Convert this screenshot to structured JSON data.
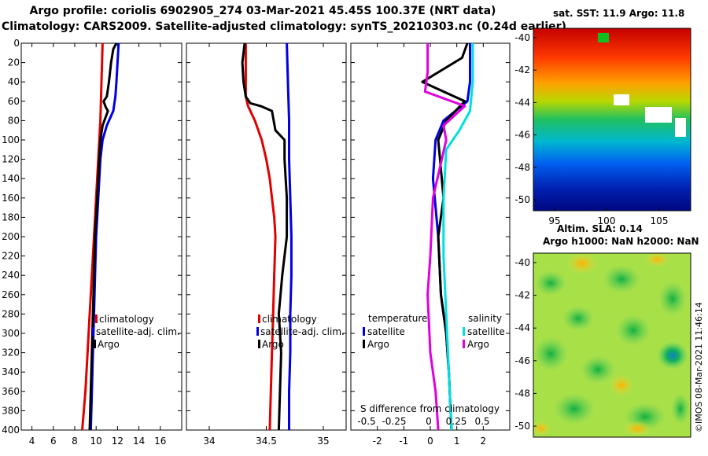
{
  "header": {
    "title_line1": "Argo profile: coriolis 6902905_274 03-Mar-2021 45.45S 100.37E (NRT data)",
    "title_line2": "Climatology: CARS2009. Satellite-adjusted climatology: synTS_20210303.nc (0.24d earlier)"
  },
  "chart_data": [
    {
      "type": "line",
      "panel": "temperature",
      "xlim": [
        3,
        18
      ],
      "xticks": [
        4,
        6,
        8,
        10,
        12,
        14,
        16
      ],
      "ylim": [
        0,
        400
      ],
      "yticks": [
        0,
        20,
        40,
        60,
        80,
        100,
        120,
        140,
        160,
        180,
        200,
        220,
        240,
        260,
        280,
        300,
        320,
        340,
        360,
        380,
        400
      ],
      "legend": [
        "climatology",
        "satellite-adj. clim.",
        "Argo"
      ],
      "series": [
        {
          "name": "climatology",
          "color": "#e00000",
          "points": [
            [
              10.6,
              0
            ],
            [
              10.5,
              40
            ],
            [
              10.4,
              80
            ],
            [
              10.2,
              120
            ],
            [
              10.0,
              160
            ],
            [
              9.8,
              200
            ],
            [
              9.6,
              240
            ],
            [
              9.4,
              280
            ],
            [
              9.2,
              320
            ],
            [
              9.0,
              360
            ],
            [
              8.7,
              400
            ]
          ]
        },
        {
          "name": "satellite-adj. clim.",
          "color": "#0000e0",
          "points": [
            [
              12.1,
              0
            ],
            [
              12.0,
              20
            ],
            [
              11.9,
              40
            ],
            [
              11.8,
              55
            ],
            [
              11.6,
              70
            ],
            [
              11.0,
              85
            ],
            [
              10.6,
              100
            ],
            [
              10.4,
              120
            ],
            [
              10.2,
              160
            ],
            [
              10.0,
              200
            ],
            [
              9.9,
              240
            ],
            [
              9.8,
              280
            ],
            [
              9.7,
              320
            ],
            [
              9.6,
              360
            ],
            [
              9.5,
              400
            ]
          ]
        },
        {
          "name": "Argo",
          "color": "#000000",
          "points": [
            [
              11.9,
              0
            ],
            [
              11.6,
              6
            ],
            [
              11.4,
              20
            ],
            [
              11.2,
              40
            ],
            [
              11.0,
              55
            ],
            [
              10.7,
              60
            ],
            [
              10.9,
              66
            ],
            [
              11.1,
              70
            ],
            [
              10.6,
              85
            ],
            [
              10.4,
              100
            ],
            [
              10.3,
              120
            ],
            [
              10.1,
              160
            ],
            [
              9.9,
              200
            ],
            [
              9.8,
              240
            ],
            [
              9.7,
              280
            ],
            [
              9.6,
              320
            ],
            [
              9.5,
              360
            ],
            [
              9.4,
              400
            ]
          ]
        }
      ]
    },
    {
      "type": "line",
      "panel": "salinity",
      "xlim": [
        33.8,
        35.2
      ],
      "xticks": [
        34,
        34.5,
        35
      ],
      "ylim": [
        0,
        400
      ],
      "legend": [
        "climatology",
        "satellite-adj. clim.",
        "Argo"
      ],
      "series": [
        {
          "name": "climatology",
          "color": "#e00000",
          "points": [
            [
              34.32,
              0
            ],
            [
              34.32,
              55
            ],
            [
              34.34,
              65
            ],
            [
              34.4,
              80
            ],
            [
              34.46,
              100
            ],
            [
              34.5,
              120
            ],
            [
              34.53,
              140
            ],
            [
              34.55,
              160
            ],
            [
              34.57,
              180
            ],
            [
              34.58,
              200
            ],
            [
              34.57,
              240
            ],
            [
              34.56,
              280
            ],
            [
              34.55,
              320
            ],
            [
              34.54,
              360
            ],
            [
              34.53,
              400
            ]
          ]
        },
        {
          "name": "satellite-adj. clim.",
          "color": "#0000e0",
          "points": [
            [
              34.68,
              0
            ],
            [
              34.69,
              40
            ],
            [
              34.7,
              80
            ],
            [
              34.7,
              120
            ],
            [
              34.71,
              160
            ],
            [
              34.72,
              200
            ],
            [
              34.72,
              240
            ],
            [
              34.71,
              280
            ],
            [
              34.71,
              320
            ],
            [
              34.7,
              360
            ],
            [
              34.7,
              400
            ]
          ]
        },
        {
          "name": "Argo",
          "color": "#000000",
          "points": [
            [
              34.31,
              0
            ],
            [
              34.29,
              20
            ],
            [
              34.3,
              40
            ],
            [
              34.32,
              55
            ],
            [
              34.36,
              62
            ],
            [
              34.45,
              65
            ],
            [
              34.55,
              70
            ],
            [
              34.58,
              90
            ],
            [
              34.66,
              100
            ],
            [
              34.66,
              120
            ],
            [
              34.68,
              160
            ],
            [
              34.68,
              200
            ],
            [
              34.64,
              240
            ],
            [
              34.61,
              280
            ],
            [
              34.63,
              320
            ],
            [
              34.62,
              360
            ],
            [
              34.61,
              400
            ]
          ]
        }
      ]
    },
    {
      "type": "line",
      "panel": "difference",
      "xlim": [
        -3,
        3
      ],
      "xticks": [
        -2,
        -1,
        0,
        1,
        2
      ],
      "xlabel_top": "S difference from climatology",
      "s_ticks": [
        "-0.5",
        "-0.25",
        "0",
        "0.25",
        "0.5"
      ],
      "ylim": [
        0,
        400
      ],
      "legend_left": {
        "title": "temperature",
        "items": [
          "satellite",
          "Argo"
        ]
      },
      "legend_right": {
        "title": "salinity",
        "items": [
          "satellite",
          "Argo"
        ]
      },
      "series": [
        {
          "name": "temperature satellite",
          "color": "#0000e0",
          "points": [
            [
              1.5,
              0
            ],
            [
              1.5,
              40
            ],
            [
              1.4,
              60
            ],
            [
              0.5,
              80
            ],
            [
              0.2,
              100
            ],
            [
              0.1,
              140
            ],
            [
              0.3,
              200
            ],
            [
              0.4,
              260
            ],
            [
              0.6,
              300
            ],
            [
              0.7,
              340
            ],
            [
              0.8,
              400
            ]
          ]
        },
        {
          "name": "temperature Argo",
          "color": "#000000",
          "points": [
            [
              1.4,
              0
            ],
            [
              1.2,
              15
            ],
            [
              -0.3,
              40
            ],
            [
              1.3,
              60
            ],
            [
              0.6,
              80
            ],
            [
              0.3,
              100
            ],
            [
              0.5,
              160
            ],
            [
              0.3,
              200
            ],
            [
              0.4,
              260
            ],
            [
              0.6,
              300
            ],
            [
              0.7,
              340
            ],
            [
              0.8,
              400
            ]
          ]
        },
        {
          "name": "salinity satellite",
          "color": "#00e0e0",
          "points": [
            [
              1.6,
              0
            ],
            [
              1.6,
              40
            ],
            [
              1.5,
              70
            ],
            [
              1.1,
              90
            ],
            [
              0.6,
              110
            ],
            [
              0.5,
              160
            ],
            [
              0.5,
              220
            ],
            [
              0.6,
              280
            ],
            [
              0.7,
              340
            ],
            [
              0.8,
              400
            ]
          ]
        },
        {
          "name": "salinity Argo",
          "color": "#e000e0",
          "points": [
            [
              -0.1,
              0
            ],
            [
              -0.1,
              30
            ],
            [
              -0.2,
              50
            ],
            [
              1.3,
              65
            ],
            [
              0.5,
              85
            ],
            [
              0.6,
              100
            ],
            [
              0.1,
              160
            ],
            [
              0.0,
              220
            ],
            [
              -0.1,
              260
            ],
            [
              0.0,
              320
            ],
            [
              0.2,
              360
            ],
            [
              0.3,
              400
            ]
          ]
        }
      ]
    }
  ],
  "sst_map": {
    "title": "sat. SST: 11.9 Argo: 11.8",
    "lat_ticks": [
      "-40",
      "-42",
      "-44",
      "-46",
      "-48",
      "-50"
    ],
    "lon_ticks": [
      "95",
      "100",
      "105"
    ]
  },
  "sla_map": {
    "title_line1": "Altim. SLA: 0.14",
    "title_line2": "Argo h1000: NaN h2000: NaN",
    "lat_ticks": [
      "-40",
      "-42",
      "-44",
      "-46",
      "-48",
      "-50"
    ]
  },
  "credit": "©IMOS 08-Mar-2021 11:46:14",
  "colors": {
    "red": "#e00000",
    "blue": "#0000e0",
    "black": "#000000",
    "cyan": "#00e0e0",
    "magenta": "#e000e0"
  }
}
